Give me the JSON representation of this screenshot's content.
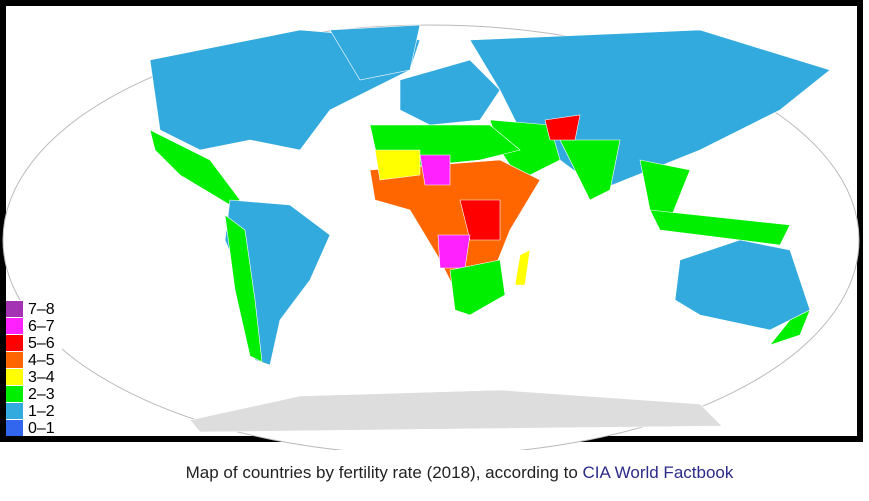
{
  "legend": {
    "items": [
      {
        "label": "7–8",
        "color": "#a333b3"
      },
      {
        "label": "6–7",
        "color": "#ff22ff"
      },
      {
        "label": "5–6",
        "color": "#ff0000"
      },
      {
        "label": "4–5",
        "color": "#ff6600"
      },
      {
        "label": "3–4",
        "color": "#ffff00"
      },
      {
        "label": "2–3",
        "color": "#00ee00"
      },
      {
        "label": "1–2",
        "color": "#33aadd"
      },
      {
        "label": "0–1",
        "color": "#3366ee"
      }
    ]
  },
  "caption": {
    "text": "Map of countries by fertility rate (2018), according to ",
    "link": "CIA World Factbook"
  }
}
